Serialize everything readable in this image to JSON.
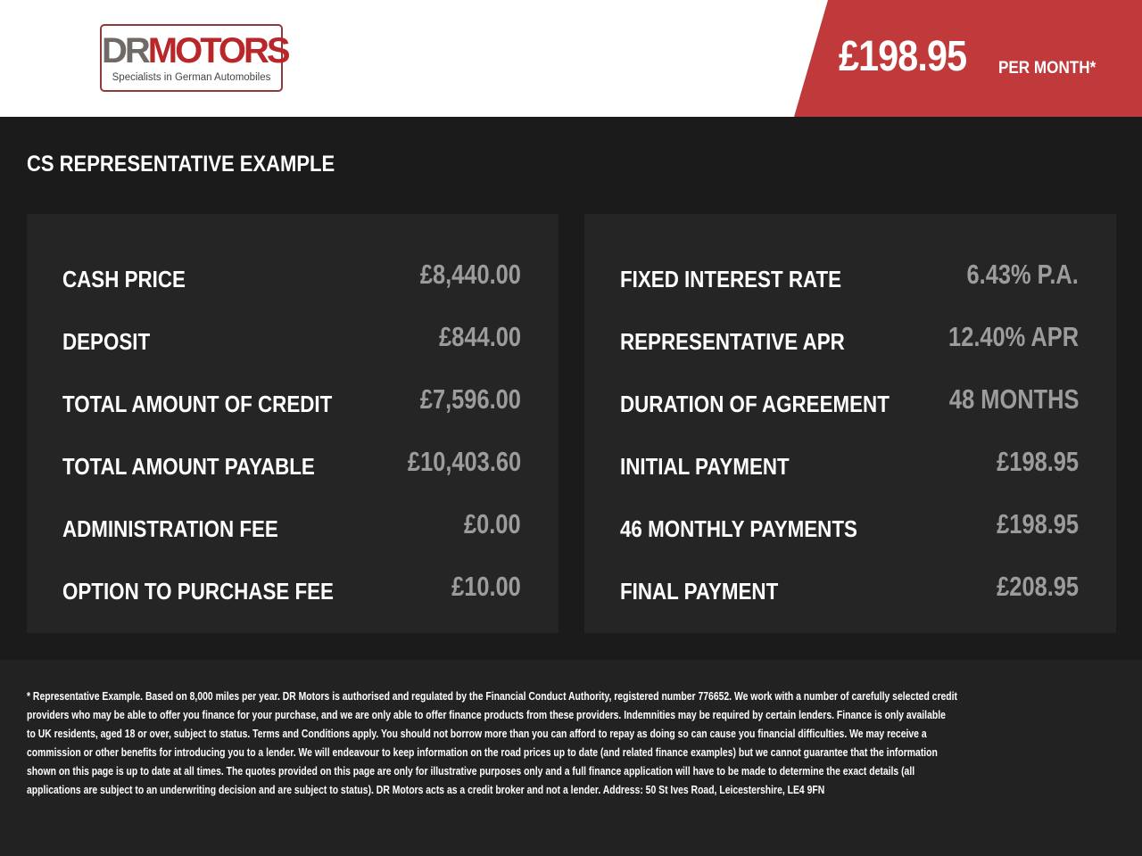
{
  "header": {
    "logo": {
      "brand_dr": "DR",
      "brand_motors": "MOTORS",
      "tagline": "Specialists in German Automobiles"
    },
    "price": "£198.95",
    "per_month": "PER MONTH*"
  },
  "section_title": "CS REPRESENTATIVE EXAMPLE",
  "left_panel": [
    {
      "label": "CASH PRICE",
      "value": "£8,440.00"
    },
    {
      "label": "DEPOSIT",
      "value": "£844.00"
    },
    {
      "label": "TOTAL AMOUNT OF CREDIT",
      "value": "£7,596.00"
    },
    {
      "label": "TOTAL AMOUNT PAYABLE",
      "value": "£10,403.60"
    },
    {
      "label": "ADMINISTRATION FEE",
      "value": "£0.00"
    },
    {
      "label": "OPTION TO PURCHASE FEE",
      "value": "£10.00"
    }
  ],
  "right_panel": [
    {
      "label": "FIXED INTEREST RATE",
      "value": "6.43% P.A."
    },
    {
      "label": "REPRESENTATIVE APR",
      "value": "12.40% APR"
    },
    {
      "label": "DURATION OF AGREEMENT",
      "value": "48 MONTHS"
    },
    {
      "label": "INITIAL PAYMENT",
      "value": "£198.95"
    },
    {
      "label": "46 MONTHLY PAYMENTS",
      "value": "£198.95"
    },
    {
      "label": "FINAL PAYMENT",
      "value": "£208.95"
    }
  ],
  "disclaimer": [
    "* Representative Example. Based on 8,000 miles per year. DR Motors is authorised and regulated by the Financial Conduct Authority, registered number 776652. We work with a number of carefully selected credit",
    "providers who may be able to offer you finance for your purchase, and we are only able to offer finance products from these providers. Indemnities may be required by certain lenders. Finance is only available",
    "to UK residents, aged 18 or over, subject to status. Terms and Conditions apply. You should not borrow more than you can afford to repay as doing so can cause you financial difficulties. We may receive a",
    "commission or other benefits for introducing you to a lender. We will endeavour to keep information on the road prices up to date (and related finance examples) but we cannot guarantee that the information",
    "shown on this page is up to date at all times. The quotes provided on this page are only for illustrative purposes only and a full finance application will have to be made to determine the exact details (all",
    "applications are subject to an underwriting decision and are subject to status). DR Motors acts as a credit broker and not a lender. Address: 50 St Ives Road, Leicestershire, LE4 9FN"
  ]
}
